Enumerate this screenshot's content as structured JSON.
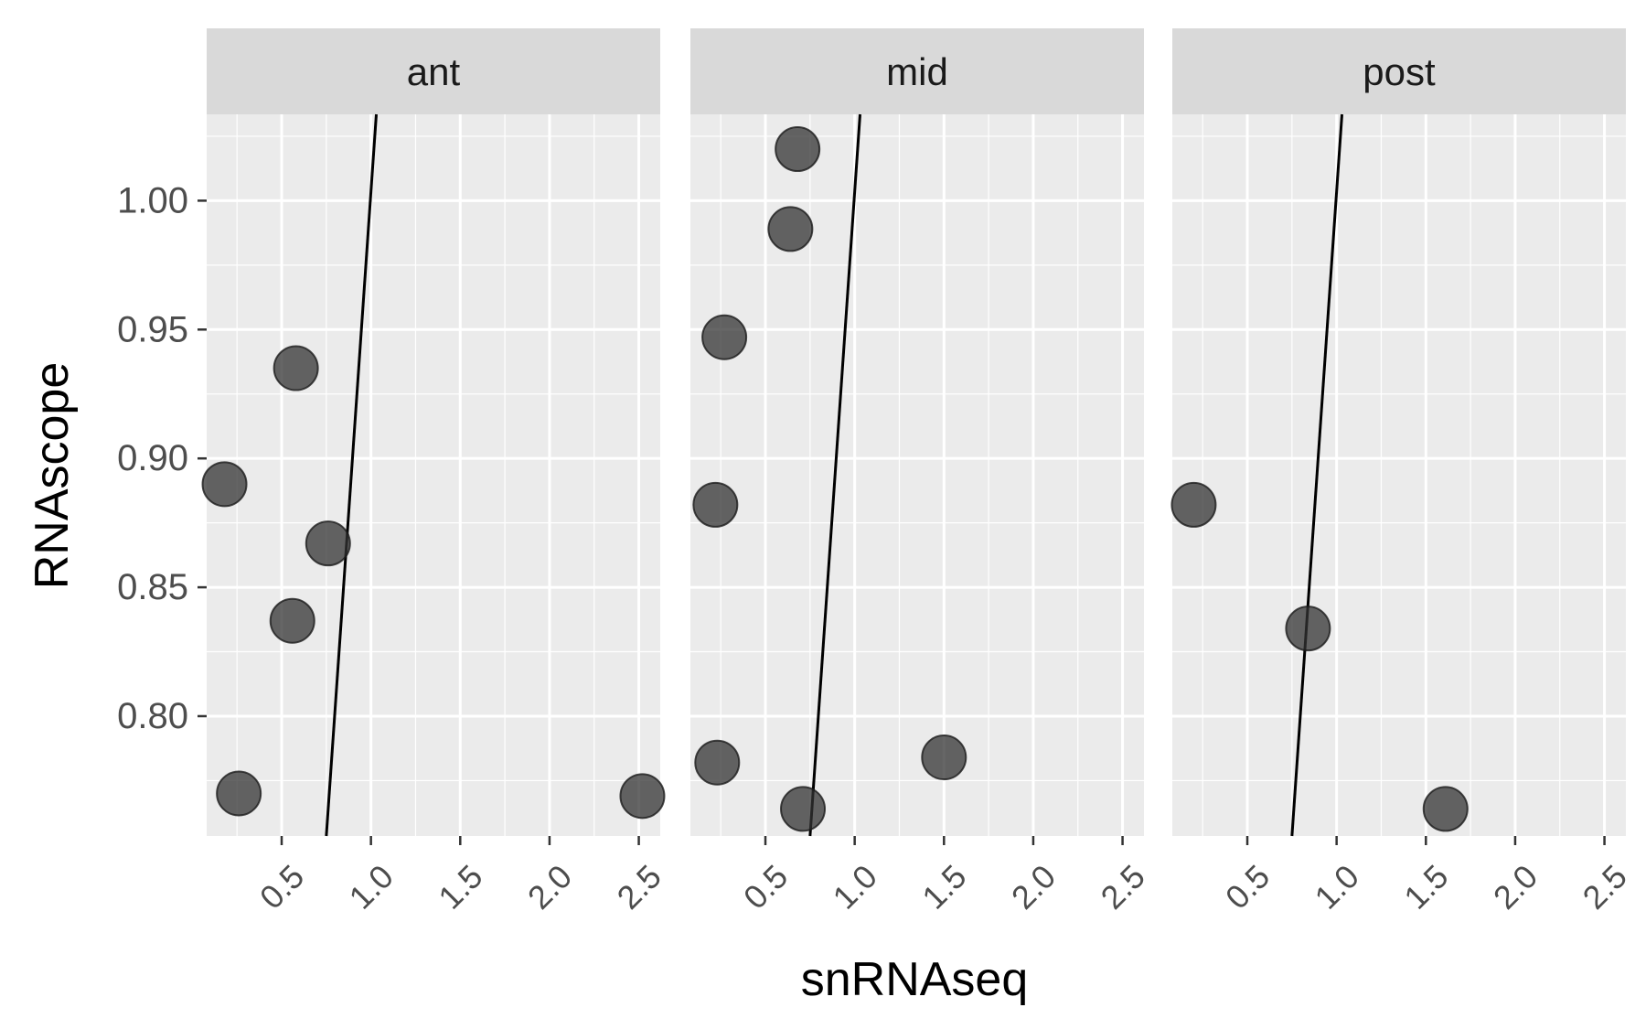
{
  "chart_data": {
    "type": "scatter",
    "xlabel": "snRNAseq",
    "ylabel": "RNAscope",
    "xlim": [
      0.08,
      2.62
    ],
    "ylim": [
      0.7535,
      1.0335
    ],
    "x_major_ticks": [
      0.5,
      1.0,
      1.5,
      2.0,
      2.5
    ],
    "x_tick_labels": [
      "0.5",
      "1.0",
      "1.5",
      "2.0",
      "2.5"
    ],
    "x_minor_ticks": [
      0.25,
      0.75,
      1.25,
      1.75,
      2.25
    ],
    "y_major_ticks": [
      0.8,
      0.85,
      0.9,
      0.95,
      1.0
    ],
    "y_tick_labels": [
      "0.80",
      "0.85",
      "0.90",
      "0.95",
      "1.00"
    ],
    "y_minor_ticks": [
      0.775,
      0.825,
      0.875,
      0.925,
      0.975,
      1.025
    ],
    "grid": true,
    "reference_line": {
      "x": [
        0.75,
        1.03
      ],
      "y": [
        0.7535,
        1.0335
      ]
    },
    "point_color": "#333333",
    "panel_background": "#ebebeb",
    "strip_background": "#d9d9d9",
    "panels": [
      {
        "name": "ant",
        "points": [
          {
            "x": 0.58,
            "y": 0.935
          },
          {
            "x": 0.18,
            "y": 0.89
          },
          {
            "x": 0.76,
            "y": 0.867
          },
          {
            "x": 0.56,
            "y": 0.837
          },
          {
            "x": 0.26,
            "y": 0.77
          },
          {
            "x": 2.52,
            "y": 0.769
          }
        ]
      },
      {
        "name": "mid",
        "points": [
          {
            "x": 0.68,
            "y": 1.02
          },
          {
            "x": 0.64,
            "y": 0.989
          },
          {
            "x": 0.27,
            "y": 0.947
          },
          {
            "x": 0.22,
            "y": 0.882
          },
          {
            "x": 0.23,
            "y": 0.782
          },
          {
            "x": 1.5,
            "y": 0.784
          },
          {
            "x": 0.71,
            "y": 0.764
          }
        ]
      },
      {
        "name": "post",
        "points": [
          {
            "x": 0.2,
            "y": 0.882
          },
          {
            "x": 0.84,
            "y": 0.834
          },
          {
            "x": 1.61,
            "y": 0.764
          }
        ]
      }
    ]
  }
}
